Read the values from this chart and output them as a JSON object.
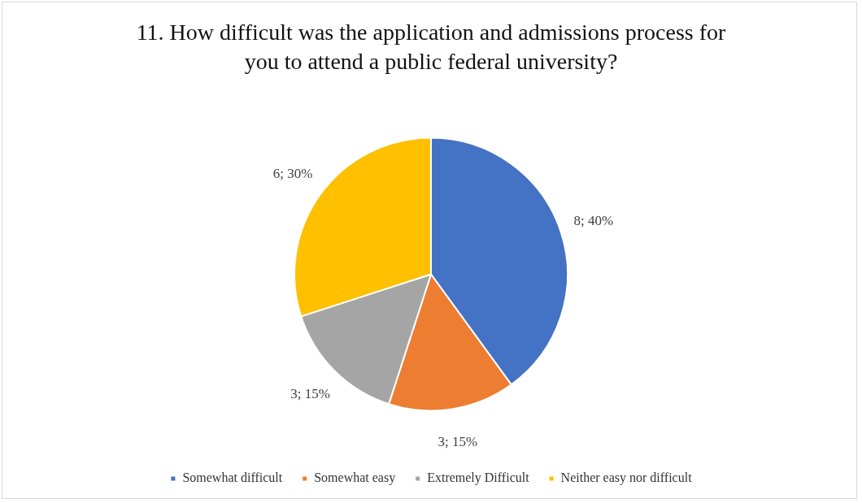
{
  "chart_data": {
    "type": "pie",
    "title": "11.  How difficult was the application and admissions process for you to attend a public federal university?",
    "categories": [
      "Somewhat difficult",
      "Somewhat easy",
      "Extremely Difficult",
      "Neither easy nor difficult"
    ],
    "values": [
      8,
      3,
      3,
      6
    ],
    "colors": [
      "#4472c4",
      "#ed7d31",
      "#a5a5a5",
      "#ffc000"
    ],
    "value_labels": [
      "8; 40%",
      "3; 15%",
      "3; 15%",
      "6; 30%"
    ],
    "legend": "bottom"
  }
}
